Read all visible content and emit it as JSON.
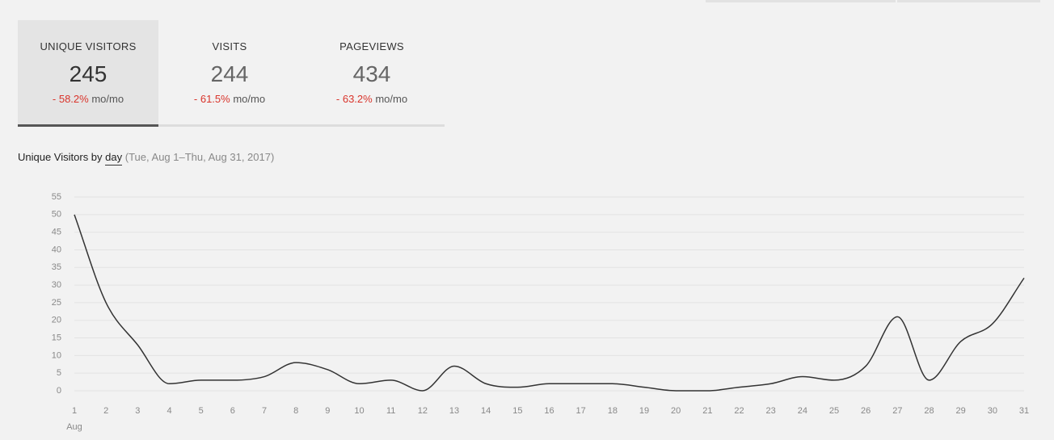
{
  "tabs": [
    {
      "label": "UNIQUE VISITORS",
      "value": 245,
      "change": "- 58.2%",
      "period": "mo/mo"
    },
    {
      "label": "VISITS",
      "value": 244,
      "change": "- 61.5%",
      "period": "mo/mo"
    },
    {
      "label": "PAGEVIEWS",
      "value": 434,
      "change": "- 63.2%",
      "period": "mo/mo"
    }
  ],
  "chart_data": {
    "type": "line",
    "title": "Unique Visitors by",
    "granularity": "day",
    "subtitle": "(Tue, Aug 1–Thu, Aug 31, 2017)",
    "categories": [
      "1",
      "2",
      "3",
      "4",
      "5",
      "6",
      "7",
      "8",
      "9",
      "10",
      "11",
      "12",
      "13",
      "14",
      "15",
      "16",
      "17",
      "18",
      "19",
      "20",
      "21",
      "22",
      "23",
      "24",
      "25",
      "26",
      "27",
      "28",
      "29",
      "30",
      "31"
    ],
    "x_sublabel": "Aug",
    "series": [
      {
        "name": "Unique Visitors",
        "color": "#333333",
        "values": [
          50,
          25,
          13,
          2,
          3,
          3,
          4,
          8,
          6,
          2,
          3,
          0,
          7,
          2,
          1,
          2,
          2,
          2,
          1,
          0,
          0,
          1,
          2,
          4,
          3,
          7,
          21,
          3,
          14,
          19,
          32
        ]
      }
    ],
    "ylim": [
      0,
      55
    ],
    "yticks": [
      0,
      5,
      10,
      15,
      20,
      25,
      30,
      35,
      40,
      45,
      50,
      55
    ],
    "grid": true
  }
}
